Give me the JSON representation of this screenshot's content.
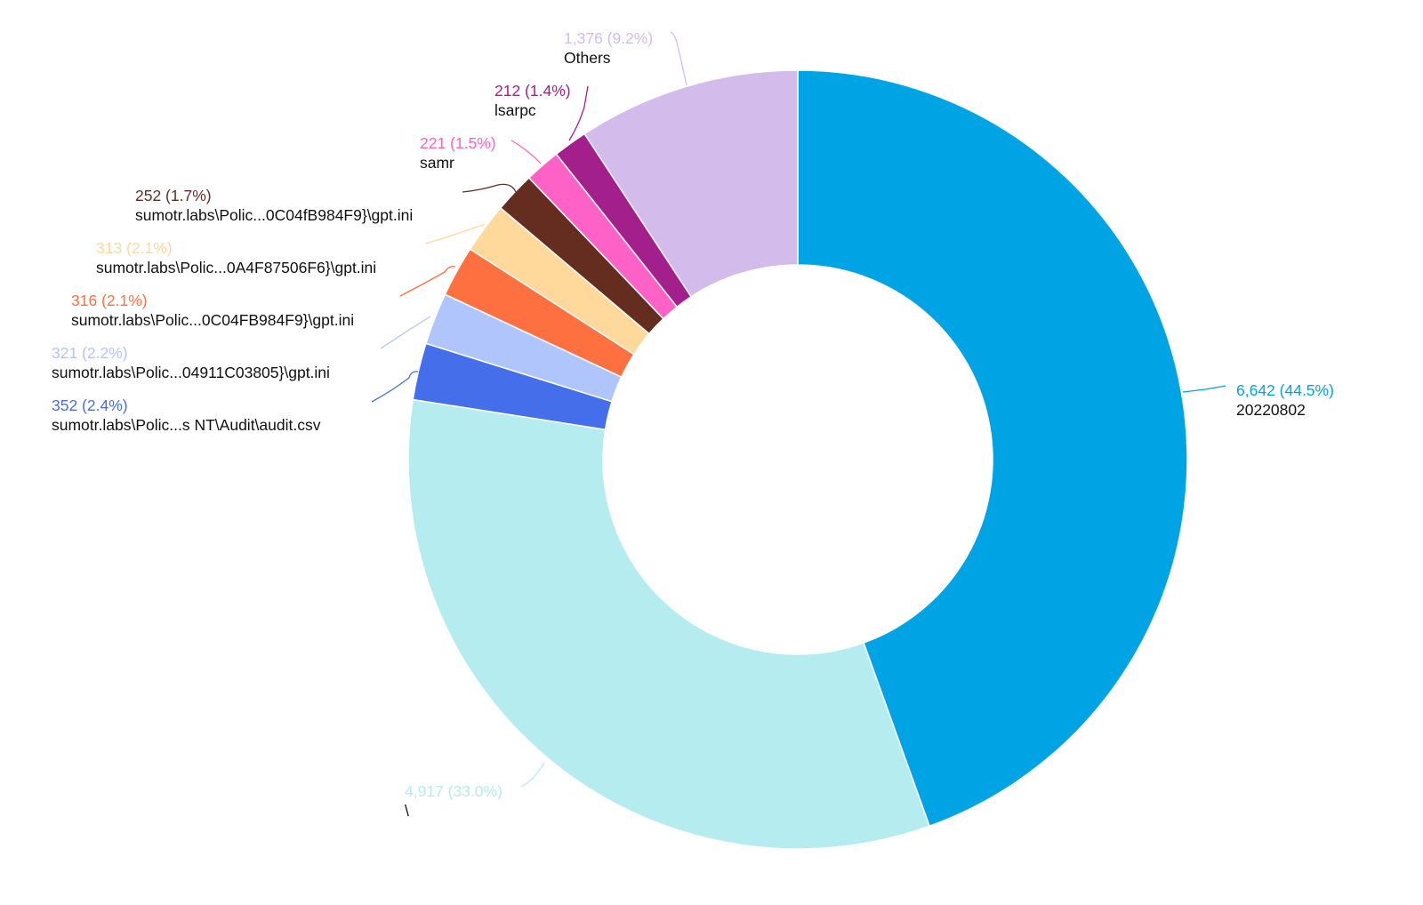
{
  "chart_data": {
    "type": "pie",
    "variant": "donut",
    "legend": "none (labels beside slices)",
    "slices": [
      {
        "label": "20220802",
        "value": 6642,
        "display": "6,642 (44.5%)",
        "color": "#00a3e4"
      },
      {
        "label": "\\",
        "value": 4917,
        "display": "4,917 (33.0%)",
        "color": "#b5ecf0"
      },
      {
        "label": "sumotr.labs\\Polic...s NT\\Audit\\audit.csv",
        "value": 352,
        "display": "352 (2.4%)",
        "color": "#456fea"
      },
      {
        "label": "sumotr.labs\\Polic...04911C03805}\\gpt.ini",
        "value": 321,
        "display": "321 (2.2%)",
        "color": "#b0c5fc"
      },
      {
        "label": "sumotr.labs\\Polic...0C04FB984F9}\\gpt.ini",
        "value": 316,
        "display": "316 (2.1%)",
        "color": "#ff7040"
      },
      {
        "label": "sumotr.labs\\Polic...0A4F87506F6}\\gpt.ini",
        "value": 313,
        "display": "313 (2.1%)",
        "color": "#ffd89c"
      },
      {
        "label": "sumotr.labs\\Polic...0C04fB984F9}\\gpt.ini",
        "value": 252,
        "display": "252 (1.7%)",
        "color": "#642d20"
      },
      {
        "label": "samr",
        "value": 221,
        "display": "221 (1.5%)",
        "color": "#ff62c6"
      },
      {
        "label": "lsarpc",
        "value": 212,
        "display": "212 (1.4%)",
        "color": "#a21f8c"
      },
      {
        "label": "Others",
        "value": 1376,
        "display": "1,376 (9.2%)",
        "color": "#d3bceb"
      }
    ]
  }
}
